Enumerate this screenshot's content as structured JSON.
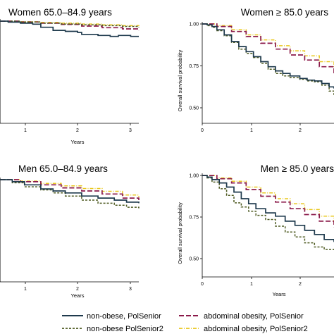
{
  "series_styles": [
    {
      "name": "non-obese, PolSenior",
      "color": "#1f3a4d",
      "dash": "",
      "width": 1.7
    },
    {
      "name": "abdominal obesity, PolSenior",
      "color": "#8b1a4a",
      "dash": "7 3",
      "width": 1.7
    },
    {
      "name": "non-obese PolSenior2",
      "color": "#4f5b22",
      "dash": "3 2",
      "width": 1.5
    },
    {
      "name": "abdominal obesity, PolSenior2",
      "color": "#e9c81f",
      "dash": "5 2 1 2",
      "width": 1.5
    }
  ],
  "legend": [
    {
      "label": "non-obese, PolSenior"
    },
    {
      "label": "abdominal obesity, PolSenior"
    },
    {
      "label": "non-obese PolSenior2"
    },
    {
      "label": "abdominal obesity, PolSenior2"
    }
  ],
  "chart_data": [
    {
      "type": "line",
      "title": "Women 65.0–84.9 years",
      "xlabel": "Years",
      "ylabel": "",
      "xlim": [
        0,
        3.4
      ],
      "ylim": [
        0.5,
        1.0
      ],
      "x_ticks": [
        "1",
        "2",
        "3"
      ],
      "y_ticks": [],
      "series": [
        {
          "x": [
            0,
            0.2,
            0.5,
            0.8,
            1.0,
            1.3,
            1.6,
            1.9,
            2.0,
            2.4,
            2.7,
            2.9,
            3.2,
            3.4
          ],
          "values": [
            1.0,
            0.995,
            0.99,
            0.985,
            0.97,
            0.955,
            0.95,
            0.945,
            0.935,
            0.93,
            0.925,
            0.93,
            0.925,
            0.925
          ]
        },
        {
          "x": [
            0,
            0.5,
            1.0,
            1.5,
            2.0,
            2.5,
            3.0,
            3.4
          ],
          "values": [
            1.0,
            0.996,
            0.99,
            0.984,
            0.976,
            0.968,
            0.962,
            0.955
          ]
        },
        {
          "x": [
            0,
            0.5,
            1.0,
            1.5,
            2.0,
            2.5,
            3.0,
            3.4
          ],
          "values": [
            1.0,
            0.996,
            0.99,
            0.986,
            0.982,
            0.978,
            0.974,
            0.97
          ]
        },
        {
          "x": [
            0,
            0.5,
            1.0,
            1.5,
            2.0,
            2.5,
            3.0,
            3.4
          ],
          "values": [
            1.0,
            0.997,
            0.994,
            0.99,
            0.986,
            0.982,
            0.978,
            0.976
          ]
        }
      ]
    },
    {
      "type": "line",
      "title": "Women ≥ 85.0 years",
      "xlabel": "",
      "ylabel": "Overall survival probability",
      "xlim": [
        0,
        2.7
      ],
      "ylim": [
        0.5,
        1.0
      ],
      "x_ticks": [
        "0",
        "1",
        "2"
      ],
      "y_ticks": [
        "1.00",
        "0.75",
        "0.50"
      ],
      "series": [
        {
          "x": [
            0,
            0.1,
            0.2,
            0.3,
            0.45,
            0.6,
            0.75,
            0.9,
            1.05,
            1.2,
            1.35,
            1.5,
            1.65,
            1.8,
            2.0,
            2.15,
            2.3,
            2.45,
            2.6,
            2.7
          ],
          "values": [
            1.0,
            0.995,
            0.985,
            0.965,
            0.935,
            0.895,
            0.865,
            0.835,
            0.805,
            0.775,
            0.745,
            0.72,
            0.705,
            0.69,
            0.675,
            0.665,
            0.66,
            0.645,
            0.625,
            0.615
          ]
        },
        {
          "x": [
            0,
            0.3,
            0.6,
            0.9,
            1.2,
            1.5,
            1.8,
            2.1,
            2.4,
            2.7
          ],
          "values": [
            1.0,
            0.985,
            0.955,
            0.925,
            0.885,
            0.85,
            0.815,
            0.785,
            0.745,
            0.705
          ]
        },
        {
          "x": [
            0,
            0.1,
            0.2,
            0.3,
            0.45,
            0.6,
            0.75,
            0.9,
            1.05,
            1.2,
            1.35,
            1.5,
            1.65,
            1.8,
            2.0,
            2.15,
            2.3,
            2.45,
            2.6,
            2.7
          ],
          "values": [
            1.0,
            0.99,
            0.98,
            0.96,
            0.93,
            0.89,
            0.85,
            0.825,
            0.8,
            0.765,
            0.73,
            0.705,
            0.69,
            0.68,
            0.67,
            0.66,
            0.655,
            0.635,
            0.6,
            0.575
          ]
        },
        {
          "x": [
            0,
            0.3,
            0.6,
            0.9,
            1.2,
            1.5,
            1.8,
            2.1,
            2.4,
            2.7
          ],
          "values": [
            1.0,
            0.99,
            0.965,
            0.935,
            0.905,
            0.87,
            0.84,
            0.81,
            0.775,
            0.74
          ]
        }
      ]
    },
    {
      "type": "line",
      "title": "Men 65.0–84.9 years",
      "xlabel": "Years",
      "ylabel": "",
      "xlim": [
        0,
        3.4
      ],
      "ylim": [
        0.5,
        1.0
      ],
      "x_ticks": [
        "1",
        "2",
        "3"
      ],
      "y_ticks": [],
      "series": [
        {
          "x": [
            0,
            0.3,
            0.6,
            1.0,
            1.3,
            1.6,
            2.0,
            2.4,
            2.8,
            3.1,
            3.4
          ],
          "values": [
            1.0,
            0.99,
            0.975,
            0.955,
            0.945,
            0.935,
            0.92,
            0.91,
            0.9,
            0.89,
            0.885
          ]
        },
        {
          "x": [
            0,
            0.5,
            1.0,
            1.5,
            2.0,
            2.5,
            3.0,
            3.4
          ],
          "values": [
            1.0,
            0.99,
            0.975,
            0.96,
            0.945,
            0.93,
            0.91,
            0.9
          ]
        },
        {
          "x": [
            0,
            0.3,
            0.6,
            1.0,
            1.3,
            1.6,
            2.0,
            2.4,
            2.8,
            3.1,
            3.4
          ],
          "values": [
            1.0,
            0.985,
            0.965,
            0.95,
            0.935,
            0.92,
            0.9,
            0.885,
            0.875,
            0.865,
            0.86
          ]
        },
        {
          "x": [
            0,
            0.5,
            1.0,
            1.5,
            2.0,
            2.5,
            3.0,
            3.4
          ],
          "values": [
            1.0,
            0.993,
            0.982,
            0.97,
            0.957,
            0.943,
            0.925,
            0.915
          ]
        }
      ]
    },
    {
      "type": "line",
      "title": "Men ≥ 85.0 years",
      "xlabel": "Years",
      "ylabel": "Overall survival probability",
      "xlim": [
        0,
        2.7
      ],
      "ylim": [
        0.5,
        1.0
      ],
      "x_ticks": [
        "0",
        "1",
        "2"
      ],
      "y_ticks": [
        "1.00",
        "0.75",
        "0.50"
      ],
      "series": [
        {
          "x": [
            0,
            0.1,
            0.2,
            0.35,
            0.5,
            0.65,
            0.8,
            0.95,
            1.1,
            1.3,
            1.5,
            1.7,
            1.9,
            2.1,
            2.3,
            2.5,
            2.7
          ],
          "values": [
            1.0,
            0.99,
            0.975,
            0.955,
            0.93,
            0.9,
            0.86,
            0.83,
            0.8,
            0.775,
            0.755,
            0.725,
            0.7,
            0.67,
            0.645,
            0.615,
            0.6
          ]
        },
        {
          "x": [
            0,
            0.3,
            0.6,
            0.9,
            1.2,
            1.5,
            1.8,
            2.1,
            2.4,
            2.7
          ],
          "values": [
            1.0,
            0.98,
            0.955,
            0.915,
            0.875,
            0.84,
            0.8,
            0.765,
            0.725,
            0.69
          ]
        },
        {
          "x": [
            0,
            0.1,
            0.2,
            0.35,
            0.5,
            0.65,
            0.8,
            0.95,
            1.1,
            1.3,
            1.5,
            1.7,
            1.9,
            2.1,
            2.3,
            2.5,
            2.7
          ],
          "values": [
            1.0,
            0.985,
            0.96,
            0.92,
            0.88,
            0.835,
            0.81,
            0.785,
            0.76,
            0.735,
            0.695,
            0.66,
            0.63,
            0.595,
            0.57,
            0.555,
            0.545
          ]
        },
        {
          "x": [
            0,
            0.3,
            0.6,
            0.9,
            1.2,
            1.5,
            1.8,
            2.1,
            2.4,
            2.7
          ],
          "values": [
            1.0,
            0.985,
            0.965,
            0.93,
            0.895,
            0.86,
            0.83,
            0.795,
            0.755,
            0.715
          ]
        }
      ]
    }
  ]
}
